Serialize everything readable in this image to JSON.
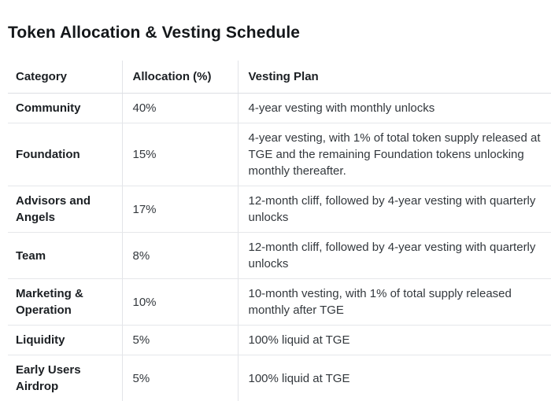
{
  "page": {
    "title": "Token Allocation & Vesting Schedule"
  },
  "colors": {
    "background": "#ffffff",
    "title_text": "#14171a",
    "category_text": "#1b1f23",
    "body_text": "#33383d",
    "border": "#e2e4e8"
  },
  "table": {
    "columns": [
      "Category",
      "Allocation (%)",
      "Vesting Plan"
    ],
    "rows": [
      {
        "category": "Community",
        "allocation": "40%",
        "vesting_plan": "4-year vesting with monthly unlocks"
      },
      {
        "category": "Foundation",
        "allocation": "15%",
        "vesting_plan": "4-year vesting, with 1% of total token supply released at TGE and the remaining Foundation tokens unlocking monthly thereafter."
      },
      {
        "category": "Advisors and Angels",
        "allocation": "17%",
        "vesting_plan": "12-month cliff, followed by 4-year vesting with quarterly unlocks"
      },
      {
        "category": "Team",
        "allocation": "8%",
        "vesting_plan": "12-month cliff, followed by 4-year vesting with quarterly unlocks"
      },
      {
        "category": "Marketing & Operation",
        "allocation": "10%",
        "vesting_plan": "10-month vesting, with 1% of total supply released monthly after TGE"
      },
      {
        "category": "Liquidity",
        "allocation": "5%",
        "vesting_plan": "100% liquid at TGE"
      },
      {
        "category": "Early Users Airdrop",
        "allocation": "5%",
        "vesting_plan": "100% liquid at TGE"
      }
    ]
  }
}
